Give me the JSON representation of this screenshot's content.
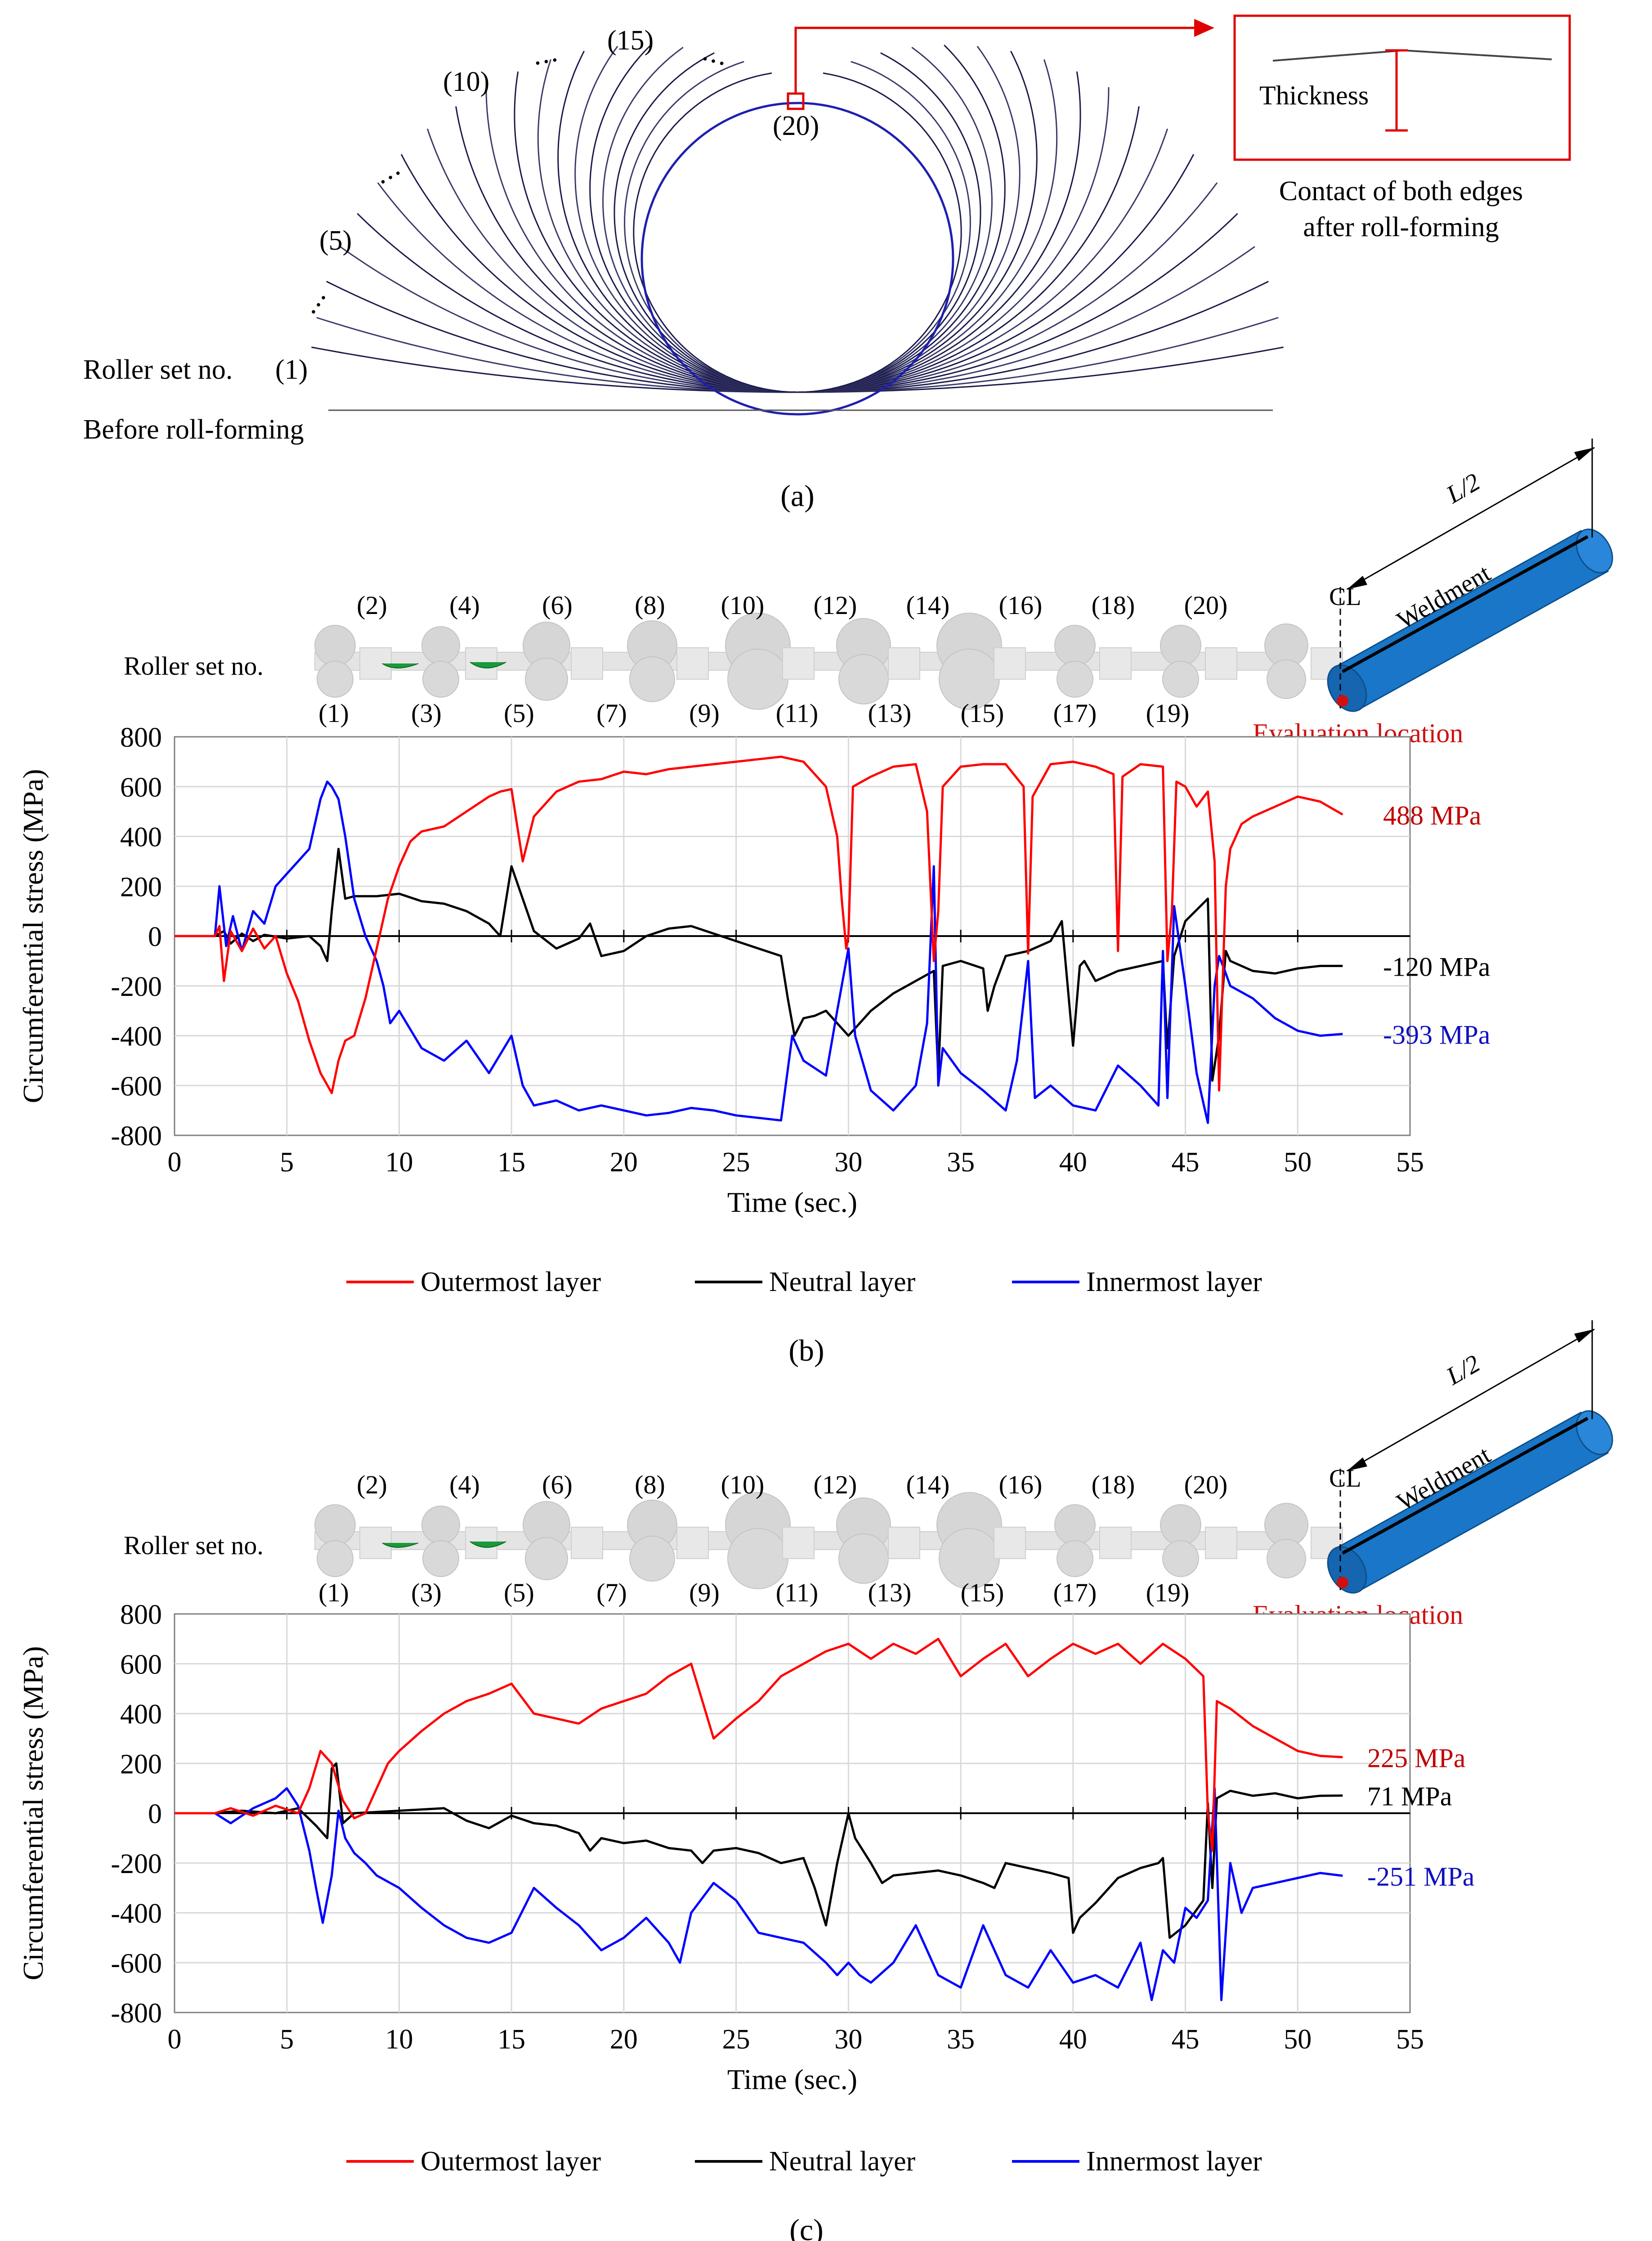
{
  "figure_a": {
    "panel_label": "(a)",
    "stage_labels": [
      "(1)",
      "(5)",
      "(10)",
      "(15)",
      "(20)"
    ],
    "ellipsis": "• • •",
    "roller_set_label": "Roller set no.",
    "before_label": "Before roll-forming",
    "inset": {
      "thickness_label": "Thickness",
      "caption_line1": "Contact of both edges",
      "caption_line2": "after roll-forming"
    },
    "colors": {
      "profile": "#1a1a4a",
      "final": "#1f1fb0",
      "callout": "#e00000"
    }
  },
  "roller_strip": {
    "label": "Roller set no.",
    "top_numbers": [
      "(2)",
      "(4)",
      "(6)",
      "(8)",
      "(10)",
      "(12)",
      "(14)",
      "(16)",
      "(18)",
      "(20)"
    ],
    "bottom_numbers": [
      "(1)",
      "(3)",
      "(5)",
      "(7)",
      "(9)",
      "(11)",
      "(13)",
      "(15)",
      "(17)",
      "(19)"
    ]
  },
  "pipe_diagram": {
    "centerline_label": "CL",
    "half_length_label": "L/2",
    "weldment_label": "Weldment",
    "evaluation_label": "Evaluation location",
    "colors": {
      "pipe": "#1976c8",
      "evaluation": "#d01010"
    }
  },
  "chart_data": [
    {
      "type": "line",
      "panel_label": "(b)",
      "title": "",
      "xlabel": "Time (sec.)",
      "ylabel": "Circumferential stress (MPa)",
      "xlim": [
        0,
        55
      ],
      "ylim": [
        -800,
        800
      ],
      "x_ticks": [
        "0",
        "5",
        "10",
        "15",
        "20",
        "25",
        "30",
        "35",
        "40",
        "45",
        "50",
        "55"
      ],
      "y_ticks": [
        "800",
        "600",
        "400",
        "200",
        "0",
        "-200",
        "-400",
        "-600",
        "-800"
      ],
      "grid": true,
      "legend_position": "bottom",
      "end_labels": [
        {
          "text": "488 MPa",
          "series": "outer"
        },
        {
          "text": "-120 MPa",
          "series": "neutral"
        },
        {
          "text": "-393 MPa",
          "series": "inner"
        }
      ],
      "series": [
        {
          "key": "outer",
          "name": "Outermost layer",
          "color": "#ff0000",
          "x": [
            0,
            1.8,
            2.0,
            2.2,
            2.5,
            3.0,
            3.5,
            4.0,
            4.5,
            5.0,
            5.5,
            6.0,
            6.5,
            7.0,
            7.3,
            7.6,
            8.0,
            8.5,
            9.0,
            9.5,
            10.0,
            10.5,
            11.0,
            12.0,
            13.0,
            14.0,
            14.5,
            15.0,
            15.5,
            16.0,
            17.0,
            18.0,
            19.0,
            20.0,
            21.0,
            22.0,
            23.0,
            24.0,
            25.0,
            26.0,
            27.0,
            28.0,
            29.0,
            29.5,
            29.7,
            29.9,
            30.0,
            30.2,
            31.0,
            32.0,
            33.0,
            33.5,
            33.8,
            34.0,
            34.2,
            35.0,
            36.0,
            37.0,
            37.8,
            38.0,
            38.2,
            39.0,
            40.0,
            41.0,
            41.8,
            42.0,
            42.2,
            43.0,
            44.0,
            44.2,
            44.4,
            44.6,
            45.0,
            45.5,
            46.0,
            46.3,
            46.5,
            46.8,
            47.0,
            47.5,
            48.0,
            49.0,
            50.0,
            51.0,
            52.0
          ],
          "y": [
            0,
            0,
            40,
            -180,
            20,
            -60,
            30,
            -50,
            0,
            -150,
            -260,
            -420,
            -550,
            -630,
            -500,
            -420,
            -400,
            -250,
            -50,
            150,
            280,
            380,
            420,
            440,
            500,
            560,
            580,
            590,
            300,
            480,
            580,
            620,
            630,
            660,
            650,
            670,
            680,
            690,
            700,
            710,
            720,
            700,
            600,
            400,
            150,
            -50,
            0,
            600,
            640,
            680,
            690,
            500,
            -100,
            100,
            600,
            680,
            690,
            690,
            600,
            -70,
            560,
            690,
            700,
            680,
            650,
            -60,
            640,
            690,
            680,
            -100,
            100,
            620,
            600,
            520,
            580,
            300,
            -620,
            200,
            350,
            450,
            480,
            520,
            560,
            540,
            488
          ]
        },
        {
          "key": "neutral",
          "name": "Neutral layer",
          "color": "#000000",
          "x": [
            0,
            1.8,
            2.2,
            2.5,
            3.0,
            3.5,
            4.0,
            5.0,
            6.0,
            6.5,
            6.8,
            7.0,
            7.3,
            7.6,
            8.0,
            9.0,
            10.0,
            11.0,
            12.0,
            13.0,
            14.0,
            14.5,
            15.0,
            15.5,
            16.0,
            17.0,
            18.0,
            18.5,
            19.0,
            20.0,
            21.0,
            22.0,
            23.0,
            24.0,
            25.0,
            26.0,
            27.0,
            27.3,
            27.6,
            28.0,
            28.5,
            29.0,
            29.5,
            30.0,
            31.0,
            32.0,
            33.0,
            33.8,
            34.0,
            34.2,
            35.0,
            36.0,
            36.2,
            36.5,
            37.0,
            38.0,
            39.0,
            39.5,
            40.0,
            40.3,
            40.5,
            41.0,
            42.0,
            43.0,
            44.0,
            44.2,
            44.5,
            45.0,
            46.0,
            46.2,
            46.5,
            46.8,
            47.0,
            48.0,
            49.0,
            50.0,
            51.0,
            52.0
          ],
          "y": [
            0,
            0,
            20,
            -30,
            10,
            -20,
            5,
            -10,
            0,
            -40,
            -100,
            100,
            350,
            150,
            160,
            160,
            170,
            140,
            130,
            100,
            50,
            0,
            280,
            150,
            20,
            -50,
            -10,
            50,
            -80,
            -60,
            0,
            30,
            40,
            10,
            -20,
            -50,
            -80,
            -250,
            -400,
            -330,
            -320,
            -300,
            -350,
            -400,
            -300,
            -230,
            -180,
            -140,
            -560,
            -120,
            -100,
            -130,
            -300,
            -200,
            -80,
            -60,
            -20,
            60,
            -440,
            -120,
            -100,
            -180,
            -140,
            -120,
            -100,
            -450,
            -80,
            60,
            150,
            -580,
            -400,
            -60,
            -100,
            -140,
            -150,
            -130,
            -120,
            -120
          ]
        },
        {
          "key": "inner",
          "name": "Innermost layer",
          "color": "#0000ff",
          "x": [
            0,
            1.8,
            2.0,
            2.3,
            2.6,
            3.0,
            3.5,
            4.0,
            4.5,
            5.0,
            5.5,
            6.0,
            6.5,
            6.8,
            7.0,
            7.3,
            7.6,
            8.0,
            8.5,
            9.0,
            9.3,
            9.6,
            10.0,
            11.0,
            12.0,
            13.0,
            14.0,
            15.0,
            15.5,
            16.0,
            17.0,
            18.0,
            19.0,
            20.0,
            21.0,
            22.0,
            23.0,
            24.0,
            25.0,
            26.0,
            27.0,
            27.5,
            28.0,
            29.0,
            29.5,
            30.0,
            30.3,
            31.0,
            32.0,
            33.0,
            33.5,
            33.8,
            34.0,
            34.2,
            35.0,
            36.0,
            37.0,
            37.5,
            38.0,
            38.3,
            39.0,
            40.0,
            41.0,
            42.0,
            43.0,
            43.8,
            44.0,
            44.2,
            44.5,
            45.0,
            45.5,
            46.0,
            46.3,
            46.5,
            46.8,
            47.0,
            48.0,
            49.0,
            50.0,
            51.0,
            52.0
          ],
          "y": [
            0,
            0,
            200,
            -40,
            80,
            -60,
            100,
            50,
            200,
            250,
            300,
            350,
            550,
            620,
            600,
            550,
            400,
            150,
            0,
            -100,
            -200,
            -350,
            -300,
            -450,
            -500,
            -420,
            -550,
            -400,
            -600,
            -680,
            -660,
            -700,
            -680,
            -700,
            -720,
            -710,
            -690,
            -700,
            -720,
            -730,
            -740,
            -400,
            -500,
            -560,
            -300,
            -50,
            -400,
            -620,
            -700,
            -600,
            -350,
            280,
            -600,
            -450,
            -550,
            -620,
            -700,
            -500,
            -100,
            -650,
            -600,
            -680,
            -700,
            -520,
            -600,
            -680,
            -60,
            -650,
            120,
            -200,
            -550,
            -750,
            -200,
            -80,
            -150,
            -200,
            -250,
            -330,
            -380,
            -400,
            -393
          ]
        }
      ]
    },
    {
      "type": "line",
      "panel_label": "(c)",
      "title": "",
      "xlabel": "Time (sec.)",
      "ylabel": "Circumferential stress (MPa)",
      "xlim": [
        0,
        55
      ],
      "ylim": [
        -800,
        800
      ],
      "x_ticks": [
        "0",
        "5",
        "10",
        "15",
        "20",
        "25",
        "30",
        "35",
        "40",
        "45",
        "50",
        "55"
      ],
      "y_ticks": [
        "800",
        "600",
        "400",
        "200",
        "0",
        "-200",
        "-400",
        "-600",
        "-800"
      ],
      "grid": true,
      "legend_position": "bottom",
      "end_labels": [
        {
          "text": "225 MPa",
          "series": "outer"
        },
        {
          "text": "71 MPa",
          "series": "neutral"
        },
        {
          "text": "-251 MPa",
          "series": "inner"
        }
      ],
      "series": [
        {
          "key": "outer",
          "name": "Outermost layer",
          "color": "#ff0000",
          "x": [
            0,
            1.8,
            2.5,
            3.5,
            4.5,
            5.5,
            6.0,
            6.5,
            7.0,
            7.5,
            8.0,
            8.5,
            9.0,
            9.5,
            10.0,
            11.0,
            12.0,
            13.0,
            14.0,
            15.0,
            16.0,
            17.0,
            18.0,
            19.0,
            20.0,
            21.0,
            22.0,
            23.0,
            23.5,
            24.0,
            25.0,
            26.0,
            27.0,
            28.0,
            29.0,
            30.0,
            31.0,
            32.0,
            33.0,
            34.0,
            35.0,
            36.0,
            37.0,
            38.0,
            39.0,
            40.0,
            41.0,
            42.0,
            43.0,
            44.0,
            45.0,
            45.8,
            46.0,
            46.2,
            46.4,
            47.0,
            48.0,
            49.0,
            50.0,
            51.0,
            52.0
          ],
          "y": [
            0,
            0,
            20,
            -10,
            30,
            0,
            100,
            250,
            200,
            50,
            -20,
            0,
            100,
            200,
            250,
            330,
            400,
            450,
            480,
            520,
            400,
            380,
            360,
            420,
            450,
            480,
            550,
            600,
            450,
            300,
            380,
            450,
            550,
            600,
            650,
            680,
            620,
            680,
            640,
            700,
            550,
            620,
            680,
            550,
            620,
            680,
            640,
            680,
            600,
            680,
            620,
            550,
            0,
            -150,
            450,
            420,
            350,
            300,
            250,
            230,
            225
          ]
        },
        {
          "key": "neutral",
          "name": "Neutral layer",
          "color": "#000000",
          "x": [
            0,
            1.8,
            3.0,
            4.5,
            5.5,
            6.3,
            6.8,
            7.0,
            7.2,
            7.5,
            8.0,
            10.0,
            12.0,
            13.0,
            14.0,
            15.0,
            16.0,
            17.0,
            18.0,
            18.5,
            19.0,
            20.0,
            21.0,
            22.0,
            23.0,
            23.5,
            24.0,
            25.0,
            26.0,
            27.0,
            28.0,
            28.5,
            29.0,
            29.5,
            30.0,
            30.3,
            31.0,
            31.5,
            32.0,
            33.0,
            34.0,
            35.0,
            36.0,
            36.5,
            37.0,
            38.0,
            39.0,
            39.8,
            40.0,
            40.3,
            41.0,
            42.0,
            43.0,
            43.8,
            44.0,
            44.3,
            45.0,
            45.8,
            46.0,
            46.2,
            46.4,
            47.0,
            48.0,
            49.0,
            50.0,
            51.0,
            52.0
          ],
          "y": [
            0,
            0,
            10,
            0,
            20,
            -50,
            -100,
            180,
            200,
            -40,
            0,
            10,
            20,
            -30,
            -60,
            -10,
            -40,
            -50,
            -80,
            -150,
            -100,
            -120,
            -110,
            -140,
            -150,
            -200,
            -150,
            -140,
            -160,
            -200,
            -180,
            -300,
            -450,
            -200,
            0,
            -100,
            -200,
            -280,
            -250,
            -240,
            -230,
            -250,
            -280,
            -300,
            -200,
            -220,
            -240,
            -260,
            -480,
            -420,
            -360,
            -260,
            -220,
            -200,
            -180,
            -500,
            -450,
            -350,
            40,
            -300,
            60,
            90,
            70,
            80,
            60,
            70,
            71
          ]
        },
        {
          "key": "inner",
          "name": "Innermost layer",
          "color": "#0000ff",
          "x": [
            0,
            1.8,
            2.5,
            3.5,
            4.5,
            5.0,
            5.5,
            6.0,
            6.3,
            6.6,
            7.0,
            7.3,
            7.6,
            8.0,
            8.5,
            9.0,
            10.0,
            11.0,
            12.0,
            13.0,
            14.0,
            15.0,
            16.0,
            17.0,
            18.0,
            19.0,
            20.0,
            21.0,
            22.0,
            22.5,
            23.0,
            24.0,
            25.0,
            26.0,
            27.0,
            28.0,
            29.0,
            29.5,
            30.0,
            30.5,
            31.0,
            32.0,
            33.0,
            34.0,
            35.0,
            36.0,
            37.0,
            38.0,
            39.0,
            40.0,
            41.0,
            42.0,
            43.0,
            43.5,
            44.0,
            44.5,
            45.0,
            45.5,
            46.0,
            46.3,
            46.6,
            47.0,
            47.5,
            48.0,
            49.0,
            50.0,
            51.0,
            52.0
          ],
          "y": [
            0,
            0,
            -40,
            20,
            60,
            100,
            30,
            -150,
            -300,
            -440,
            -250,
            10,
            -100,
            -160,
            -200,
            -250,
            -300,
            -380,
            -450,
            -500,
            -520,
            -480,
            -300,
            -380,
            -450,
            -550,
            -500,
            -420,
            -520,
            -600,
            -400,
            -280,
            -350,
            -480,
            -500,
            -520,
            -600,
            -650,
            -600,
            -650,
            -680,
            -600,
            -450,
            -650,
            -700,
            -450,
            -650,
            -700,
            -550,
            -680,
            -650,
            -700,
            -520,
            -750,
            -550,
            -600,
            -380,
            -420,
            -350,
            100,
            -750,
            -200,
            -400,
            -300,
            -280,
            -260,
            -240,
            -251
          ]
        }
      ]
    }
  ]
}
